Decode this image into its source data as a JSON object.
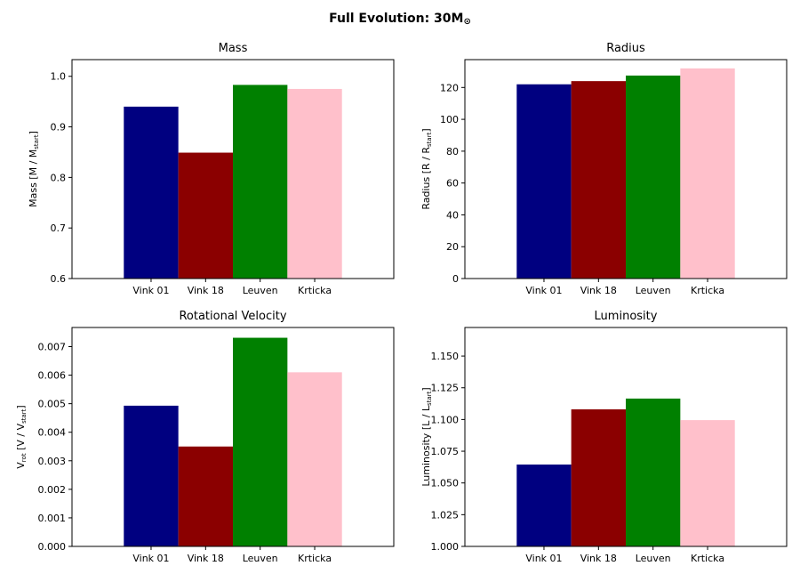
{
  "figure": {
    "title": "Full Evolution: 30M",
    "title_symbol": "⊙"
  },
  "colors": [
    "#000080",
    "#8b0000",
    "#008000",
    "#ffc0cb"
  ],
  "chart_data": [
    {
      "type": "bar",
      "title": "Mass",
      "categories": [
        "Vink 01",
        "Vink 18",
        "Leuven",
        "Krticka"
      ],
      "values": [
        0.94,
        0.849,
        0.983,
        0.975
      ],
      "ylabel": "Mass [M / M",
      "ylabel_sub": "start",
      "ylabel_suffix": "]",
      "ylim": [
        0.6,
        1.033
      ],
      "ticks": [
        0.6,
        0.7,
        0.8,
        0.9,
        1.0
      ],
      "tick_labels": [
        "0.6",
        "0.7",
        "0.8",
        "0.9",
        "1.0"
      ]
    },
    {
      "type": "bar",
      "title": "Radius",
      "categories": [
        "Vink 01",
        "Vink 18",
        "Leuven",
        "Krticka"
      ],
      "values": [
        122,
        124,
        127.5,
        132
      ],
      "ylabel": "Radius [R / R",
      "ylabel_sub": "start",
      "ylabel_suffix": "]",
      "ylim": [
        0,
        137.5
      ],
      "ticks": [
        0,
        20,
        40,
        60,
        80,
        100,
        120
      ],
      "tick_labels": [
        "0",
        "20",
        "40",
        "60",
        "80",
        "100",
        "120"
      ]
    },
    {
      "type": "bar",
      "title": "Rotational Velocity",
      "categories": [
        "Vink 01",
        "Vink 18",
        "Leuven",
        "Krticka"
      ],
      "values": [
        0.00493,
        0.0035,
        0.00731,
        0.0061
      ],
      "ylabel": "V",
      "ylabel_sub": "rot",
      "ylabel_suffix": " [V / V",
      "ylabel_sub2": "start",
      "ylabel_suffix2": "]",
      "ylim": [
        0,
        0.00767
      ],
      "ticks": [
        0,
        0.001,
        0.002,
        0.003,
        0.004,
        0.005,
        0.006,
        0.007
      ],
      "tick_labels": [
        "0.000",
        "0.001",
        "0.002",
        "0.003",
        "0.004",
        "0.005",
        "0.006",
        "0.007"
      ]
    },
    {
      "type": "bar",
      "title": "Luminosity",
      "categories": [
        "Vink 01",
        "Vink 18",
        "Leuven",
        "Krticka"
      ],
      "values": [
        1.0645,
        1.108,
        1.1165,
        1.0995
      ],
      "ylabel": "Luminosity [L / L",
      "ylabel_sub": "start",
      "ylabel_suffix": "]",
      "ylim": [
        1.0,
        1.1725
      ],
      "ticks": [
        1.0,
        1.025,
        1.05,
        1.075,
        1.1,
        1.125,
        1.15
      ],
      "tick_labels": [
        "1.000",
        "1.025",
        "1.050",
        "1.075",
        "1.100",
        "1.125",
        "1.150"
      ]
    }
  ]
}
